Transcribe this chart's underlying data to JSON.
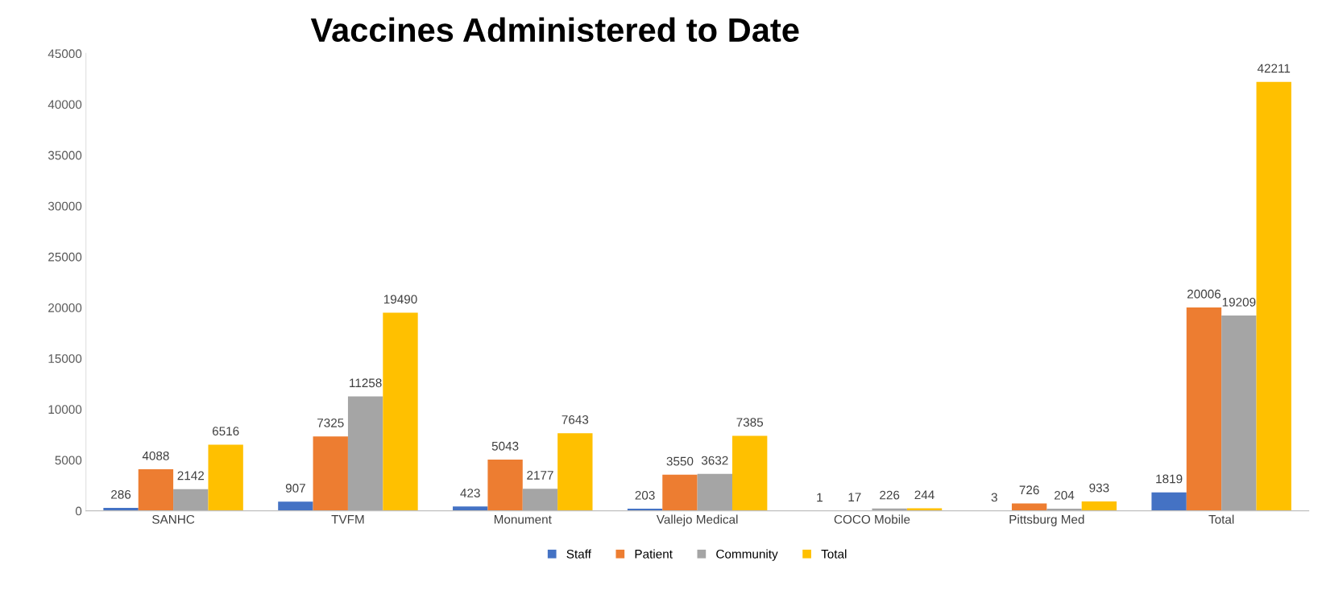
{
  "chart_data": {
    "type": "bar",
    "title": "Vaccines Administered to Date",
    "categories": [
      "SANHC",
      "TVFM",
      "Monument",
      "Vallejo Medical",
      "COCO Mobile",
      "Pittsburg Med",
      "Total"
    ],
    "series": [
      {
        "name": "Staff",
        "color": "#4472c4",
        "values": [
          286,
          907,
          423,
          203,
          1,
          3,
          1819
        ]
      },
      {
        "name": "Patient",
        "color": "#ed7d31",
        "values": [
          4088,
          7325,
          5043,
          3550,
          17,
          726,
          20006
        ]
      },
      {
        "name": "Community",
        "color": "#a5a5a5",
        "values": [
          2142,
          11258,
          2177,
          3632,
          226,
          204,
          19209
        ]
      },
      {
        "name": "Total",
        "color": "#ffc000",
        "values": [
          6516,
          19490,
          7643,
          7385,
          244,
          933,
          42211
        ]
      }
    ],
    "ylim": [
      0,
      45000
    ],
    "yticks": [
      0,
      5000,
      10000,
      15000,
      20000,
      25000,
      30000,
      35000,
      40000,
      45000
    ],
    "data_labels": true,
    "legend": "bottom",
    "grid": false
  }
}
